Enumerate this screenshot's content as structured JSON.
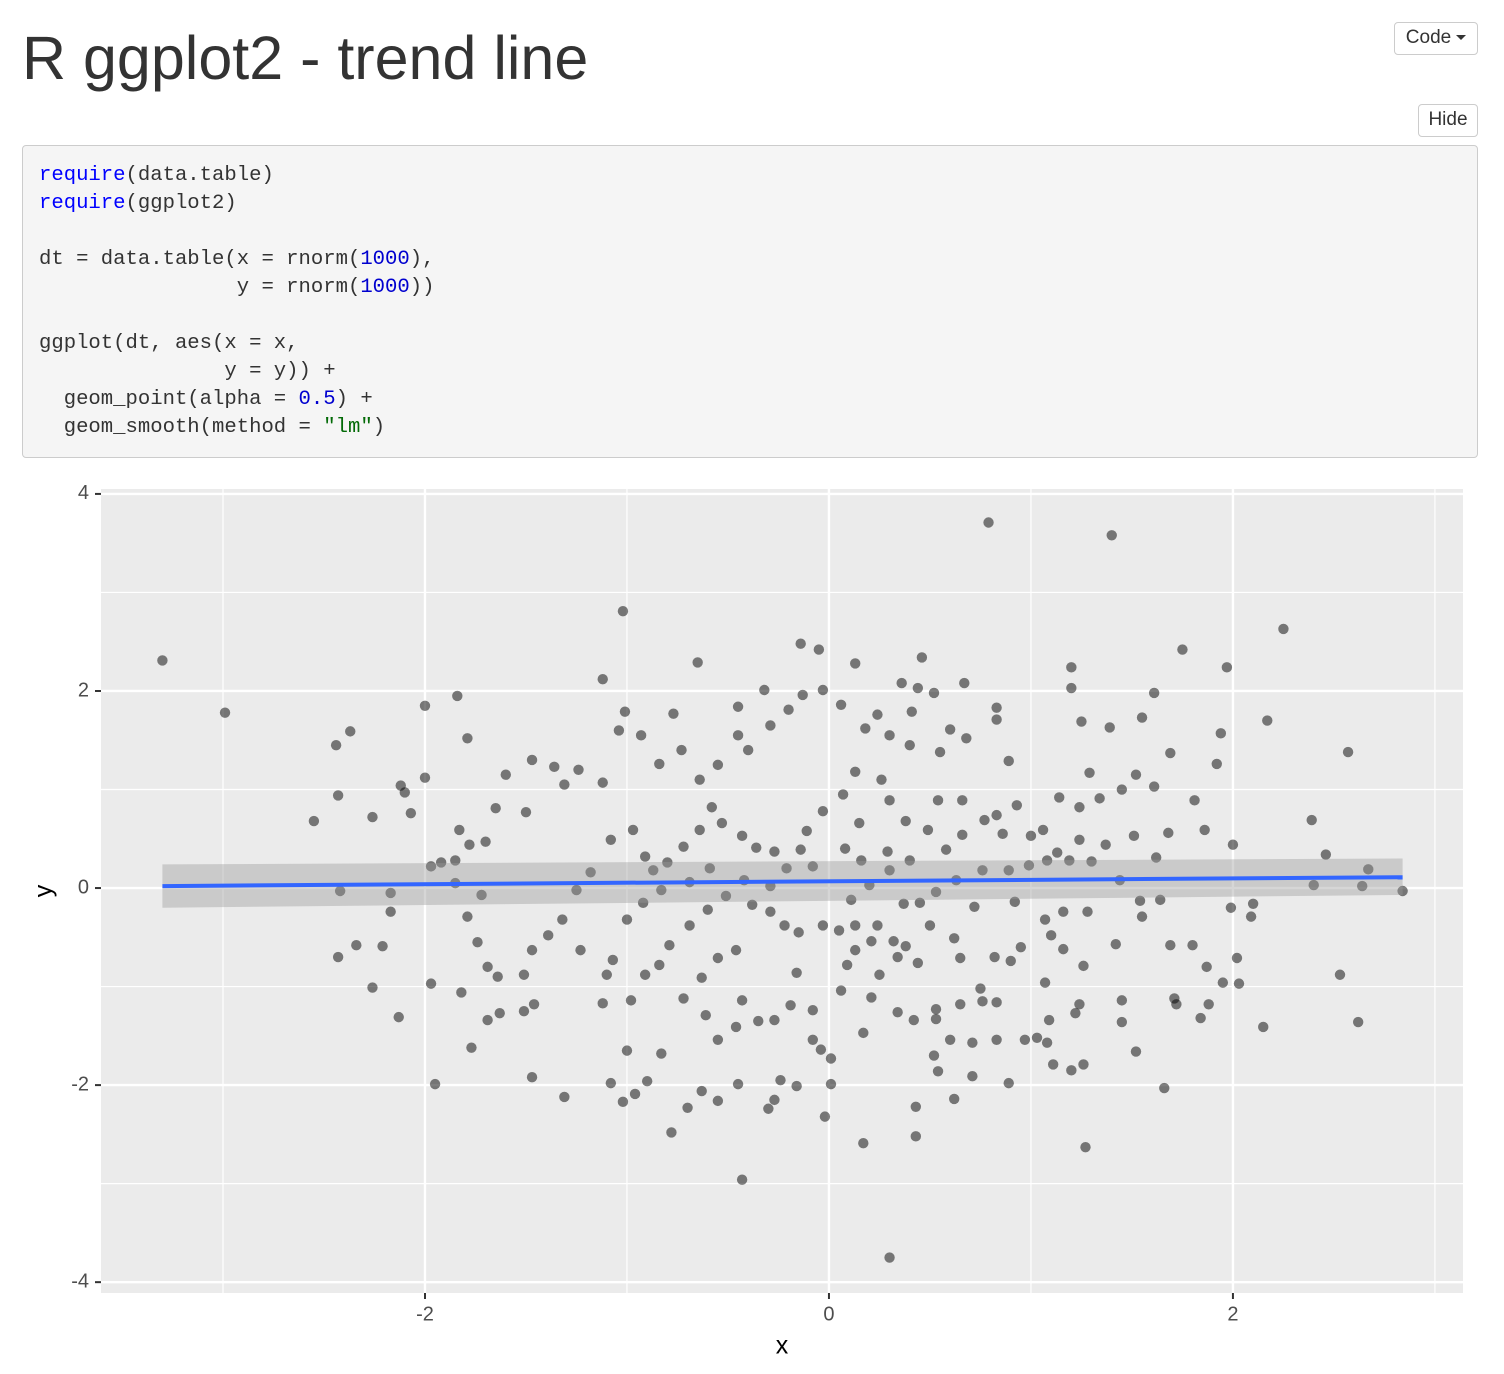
{
  "header": {
    "title": "R ggplot2 - trend line",
    "code_button": "Code"
  },
  "code": {
    "hide_button": "Hide",
    "lines": [
      [
        {
          "text": "require",
          "style": "fn"
        },
        {
          "text": "(data.table)"
        }
      ],
      [
        {
          "text": "require",
          "style": "fn"
        },
        {
          "text": "(ggplot2)"
        }
      ],
      [],
      [
        {
          "text": "dt = data.table(x = rnorm("
        },
        {
          "text": "1000",
          "style": "num"
        },
        {
          "text": "),"
        }
      ],
      [
        {
          "text": "                y = rnorm("
        },
        {
          "text": "1000",
          "style": "num"
        },
        {
          "text": "))"
        }
      ],
      [],
      [
        {
          "text": "ggplot(dt, aes(x = x,"
        }
      ],
      [
        {
          "text": "               y = y)) +"
        }
      ],
      [
        {
          "text": "  geom_point(alpha = "
        },
        {
          "text": "0.5",
          "style": "num"
        },
        {
          "text": ") +"
        }
      ],
      [
        {
          "text": "  geom_smooth(method = "
        },
        {
          "text": "\"lm\"",
          "style": "str"
        },
        {
          "text": ")"
        }
      ]
    ]
  },
  "chart_data": {
    "type": "scatter",
    "x_label": "x",
    "y_label": "y",
    "xlim": [
      -3.604,
      3.139
    ],
    "ylim": [
      -4.11,
      4.05
    ],
    "xticks": [
      -2,
      0,
      2
    ],
    "yticks": [
      -4,
      -2,
      0,
      2,
      4
    ],
    "xminor": [
      -3,
      -1,
      1,
      3
    ],
    "yminor": [
      -3,
      -1,
      1,
      3
    ],
    "grid": true,
    "panel_color": "#ebebeb",
    "point_color": "#000000",
    "point_alpha": 0.5,
    "x": [
      -3.3,
      -2.99,
      -2.55,
      -2.44,
      -2.37,
      -2.43,
      -2.42,
      -2.43,
      -2.34,
      -2.26,
      -2.26,
      -2.21,
      -2.17,
      -2.17,
      -2.13,
      -2.12,
      -2.1,
      -2.07,
      -2.0,
      -2.0,
      -1.97,
      -1.95,
      -1.84,
      -1.82,
      -1.79,
      -1.77,
      0.79,
      1.4,
      2.25,
      1.75,
      1.97,
      2.17,
      2.57,
      2.39,
      2.46,
      2.4,
      2.67,
      2.64,
      2.84,
      2.53,
      2.62,
      2.15,
      1.66,
      1.27,
      0.3,
      -0.43,
      -1.02,
      -0.65,
      -0.14,
      0.13,
      0.46,
      -1.12,
      1.2,
      1.2,
      1.61,
      1.39,
      1.55,
      1.25,
      1.94,
      1.92,
      1.69,
      1.81,
      1.86,
      2.0,
      1.99,
      2.1,
      2.09,
      2.02,
      2.03,
      1.95,
      1.87,
      1.88,
      1.84,
      1.8,
      1.69,
      1.71,
      1.72,
      1.52,
      1.45,
      1.45,
      1.42,
      1.24,
      1.26,
      1.2,
      1.11,
      1.03,
      0.89,
      0.71,
      0.62,
      0.43,
      0.43,
      0.17,
      -0.02,
      0.01,
      -0.3,
      -0.27,
      -0.55,
      -0.63,
      -0.7,
      -0.78,
      -0.9,
      -0.96,
      -1.02,
      -1.08,
      -1.31,
      -1.47,
      -1.0,
      -0.83,
      -0.45,
      -0.24,
      -0.16,
      0.52,
      0.54,
      0.71,
      0.83,
      0.97,
      0.6,
      1.08,
      1.09,
      1.22,
      0.17,
      0.21,
      0.34,
      0.42,
      0.53,
      0.65,
      0.76,
      0.83,
      0.75,
      1.07,
      1.1,
      1.16,
      1.26,
      1.07,
      0.95,
      0.9,
      0.82,
      0.65,
      0.62,
      0.5,
      0.38,
      0.32,
      0.24,
      0.37,
      0.45,
      0.53,
      0.63,
      0.76,
      0.89,
      0.99,
      1.08,
      1.19,
      1.3,
      1.44,
      1.54,
      1.64,
      1.55,
      1.28,
      1.16,
      0.92,
      0.72,
      0.86,
      0.83,
      0.66,
      0.54,
      0.49,
      0.38,
      0.3,
      0.26,
      0.13,
      0.07,
      -0.03,
      -0.11,
      -0.14,
      -0.08,
      0.08,
      0.16,
      0.29,
      0.15,
      0.24,
      0.36,
      0.44,
      0.52,
      0.41,
      0.67,
      0.83,
      0.83,
      0.89,
      0.68,
      0.6,
      0.55,
      0.4,
      0.3,
      0.18,
      0.06,
      -0.03,
      -0.05,
      -0.13,
      -0.2,
      -0.29,
      -0.32,
      -0.45,
      -0.4,
      -0.45,
      -0.55,
      -0.64,
      -0.73,
      -0.77,
      -0.84,
      -0.93,
      -1.01,
      -1.04,
      -1.12,
      -1.24,
      -1.31,
      -1.36,
      -1.47,
      -1.6,
      -1.5,
      -1.65,
      -1.7,
      -1.83,
      -1.78,
      -1.85,
      -1.92,
      -1.97,
      -1.85,
      -1.79,
      -1.72,
      -1.74,
      -1.69,
      -1.64,
      -1.69,
      -1.63,
      -1.51,
      -1.46,
      -1.51,
      -1.47,
      -1.39,
      -1.32,
      -1.23,
      -1.25,
      -1.18,
      -1.08,
      -0.97,
      -0.91,
      -0.87,
      -0.8,
      -0.72,
      -0.64,
      -0.58,
      -0.53,
      -0.43,
      -0.36,
      -0.27,
      -0.21,
      -0.29,
      -0.42,
      -0.51,
      -0.6,
      -0.69,
      -0.79,
      -0.84,
      -0.91,
      -0.98,
      -1.1,
      -1.12,
      -1.07,
      -1.0,
      -0.92,
      -0.83,
      -0.69,
      -0.59,
      -0.43,
      -0.46,
      -0.35,
      -0.27,
      -0.19,
      -0.16,
      -0.08,
      -0.08,
      -0.04,
      0.01,
      0.06,
      0.09,
      0.13,
      0.21,
      0.05,
      -0.03,
      -0.15,
      -0.22,
      -0.29,
      -0.38,
      -0.46,
      -0.55,
      -0.63,
      -0.72,
      -0.61,
      -0.55,
      0.53,
      0.44,
      0.34,
      0.25,
      0.13,
      0.11,
      0.2,
      0.3,
      0.4,
      0.58,
      0.66,
      0.77,
      0.93,
      1.06,
      1.14,
      1.24,
      1.29,
      1.34,
      1.45,
      1.52,
      1.61,
      1.68,
      1.62,
      1.51,
      1.37,
      1.24,
      1.13,
      1.0
    ],
    "values": [
      2.31,
      1.78,
      0.68,
      1.45,
      1.59,
      0.94,
      -0.03,
      -0.7,
      -0.58,
      -1.01,
      0.72,
      -0.59,
      -0.05,
      -0.24,
      -1.31,
      1.04,
      0.97,
      0.76,
      1.85,
      1.12,
      -0.97,
      -1.99,
      1.95,
      -1.06,
      1.52,
      -1.62,
      3.71,
      3.58,
      2.63,
      2.42,
      2.24,
      1.7,
      1.38,
      0.69,
      0.34,
      0.03,
      0.19,
      0.02,
      -0.03,
      -0.88,
      -1.36,
      -1.41,
      -2.03,
      -2.63,
      -3.75,
      -2.96,
      2.81,
      2.29,
      2.48,
      2.28,
      2.34,
      2.12,
      2.24,
      2.03,
      1.98,
      1.63,
      1.73,
      1.69,
      1.57,
      1.26,
      1.37,
      0.89,
      0.59,
      0.44,
      -0.2,
      -0.16,
      -0.29,
      -0.71,
      -0.97,
      -0.96,
      -0.8,
      -1.18,
      -1.32,
      -0.58,
      -0.58,
      -1.12,
      -1.18,
      -1.66,
      -1.36,
      -1.14,
      -0.57,
      -1.18,
      -1.79,
      -1.85,
      -1.79,
      -1.52,
      -1.98,
      -1.91,
      -2.14,
      -2.22,
      -2.52,
      -2.59,
      -2.32,
      -1.99,
      -2.24,
      -2.15,
      -2.16,
      -2.06,
      -2.23,
      -2.48,
      -1.96,
      -2.09,
      -2.17,
      -1.98,
      -2.12,
      -1.92,
      -1.65,
      -1.68,
      -1.99,
      -1.95,
      -2.01,
      -1.7,
      -1.86,
      -1.57,
      -1.54,
      -1.54,
      -1.54,
      -1.57,
      -1.34,
      -1.27,
      -1.47,
      -1.11,
      -1.26,
      -1.34,
      -1.33,
      -1.18,
      -1.15,
      -1.16,
      -1.02,
      -0.96,
      -0.48,
      -0.62,
      -0.79,
      -0.32,
      -0.6,
      -0.74,
      -0.7,
      -0.71,
      -0.51,
      -0.38,
      -0.59,
      -0.54,
      -0.38,
      -0.16,
      -0.15,
      -0.04,
      0.08,
      0.18,
      0.18,
      0.23,
      0.28,
      0.28,
      0.27,
      0.08,
      -0.13,
      -0.12,
      -0.29,
      -0.24,
      -0.24,
      -0.14,
      -0.19,
      0.55,
      0.74,
      0.89,
      0.89,
      0.59,
      0.68,
      0.89,
      1.1,
      1.18,
      0.95,
      0.78,
      0.58,
      0.39,
      0.22,
      0.4,
      0.28,
      0.37,
      0.66,
      1.76,
      2.08,
      2.03,
      1.98,
      1.79,
      2.08,
      1.83,
      1.71,
      1.29,
      1.52,
      1.61,
      1.38,
      1.45,
      1.55,
      1.62,
      1.86,
      2.01,
      2.42,
      1.96,
      1.81,
      1.65,
      2.01,
      1.84,
      1.4,
      1.55,
      1.25,
      1.1,
      1.4,
      1.77,
      1.26,
      1.55,
      1.79,
      1.6,
      1.07,
      1.2,
      1.05,
      1.23,
      1.3,
      1.15,
      0.77,
      0.81,
      0.47,
      0.59,
      0.44,
      0.28,
      0.26,
      0.22,
      0.05,
      -0.29,
      -0.07,
      -0.55,
      -0.8,
      -0.9,
      -1.34,
      -1.27,
      -1.25,
      -1.18,
      -0.88,
      -0.63,
      -0.48,
      -0.32,
      -0.63,
      -0.02,
      0.16,
      0.49,
      0.59,
      0.32,
      0.18,
      0.26,
      0.42,
      0.59,
      0.82,
      0.66,
      0.53,
      0.41,
      0.37,
      0.2,
      0.02,
      0.08,
      -0.08,
      -0.22,
      -0.38,
      -0.58,
      -0.78,
      -0.88,
      -1.14,
      -0.88,
      -1.17,
      -0.73,
      -0.32,
      -0.15,
      -0.02,
      0.06,
      0.2,
      -1.14,
      -1.41,
      -1.35,
      -1.34,
      -1.19,
      -0.86,
      -1.24,
      -1.54,
      -1.64,
      -1.73,
      -1.04,
      -0.78,
      -0.63,
      -0.54,
      -0.43,
      -0.38,
      -0.45,
      -0.38,
      -0.24,
      -0.17,
      -0.63,
      -0.71,
      -0.91,
      -1.12,
      -1.29,
      -1.54,
      -1.23,
      -0.76,
      -0.7,
      -0.88,
      -0.38,
      -0.12,
      0.03,
      0.18,
      0.28,
      0.39,
      0.54,
      0.69,
      0.84,
      0.59,
      0.92,
      0.82,
      1.17,
      0.91,
      1.0,
      1.15,
      1.03,
      0.56,
      0.31,
      0.53,
      0.44,
      0.49,
      0.36,
      0.53
    ],
    "trend": {
      "color": "#3366ff",
      "band_color": "#999999",
      "x": [
        -3.3,
        2.84
      ],
      "y": [
        0.02,
        0.11
      ],
      "ci_upper": [
        0.24,
        0.3
      ],
      "ci_lower": [
        -0.2,
        -0.07
      ]
    }
  }
}
